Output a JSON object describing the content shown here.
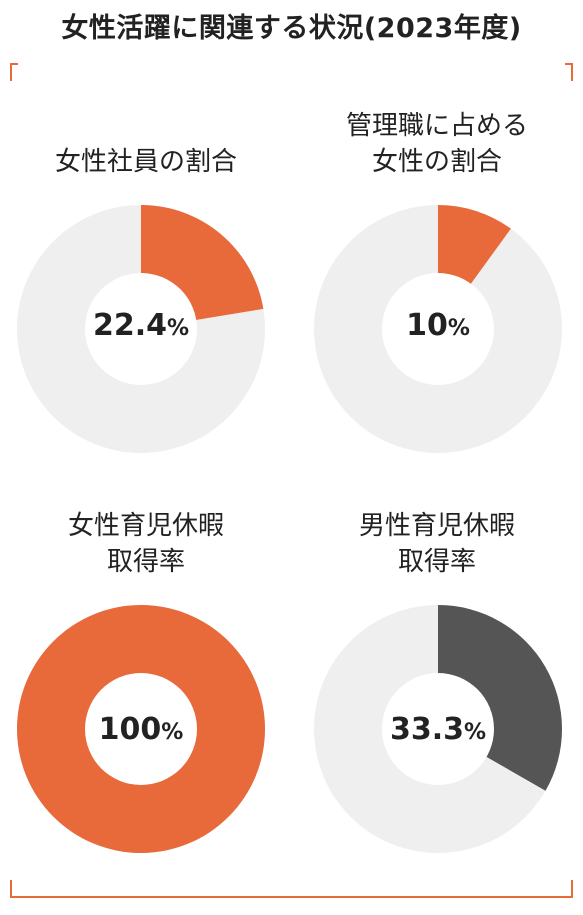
{
  "header": {
    "title": "女性活躍に関連する状況(2023年度)"
  },
  "colors": {
    "accent": "#e8693a",
    "track": "#efefef",
    "dark": "#555555",
    "hole": "#ffffff"
  },
  "chart_data": [
    {
      "type": "pie",
      "title_lines": [
        "女性社員の割合"
      ],
      "value": 22.4,
      "value_text": "22.4",
      "unit": "%",
      "color": "#e8693a"
    },
    {
      "type": "pie",
      "title_lines": [
        "管理職に占める",
        "女性の割合"
      ],
      "value": 10,
      "value_text": "10",
      "unit": "%",
      "color": "#e8693a"
    },
    {
      "type": "pie",
      "title_lines": [
        "女性育児休暇",
        "取得率"
      ],
      "value": 100,
      "value_text": "100",
      "unit": "%",
      "color": "#e8693a"
    },
    {
      "type": "pie",
      "title_lines": [
        "男性育児休暇",
        "取得率"
      ],
      "value": 33.3,
      "value_text": "33.3",
      "unit": "%",
      "color": "#555555"
    }
  ]
}
